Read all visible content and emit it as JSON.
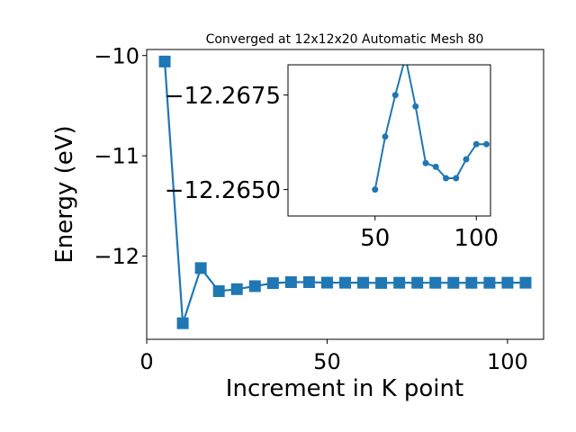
{
  "chart_data": [
    {
      "type": "line",
      "title": "Converged at 12x12x20 Automatic Mesh 80",
      "xlabel": "Increment in K point",
      "ylabel": "Energy (eV)",
      "xlim": [
        0,
        110
      ],
      "ylim": [
        -12.83,
        -9.94
      ],
      "xticks": [
        0,
        50,
        100
      ],
      "xtick_labels": [
        "0",
        "50",
        "100"
      ],
      "yticks": [
        -10,
        -11,
        -12
      ],
      "ytick_labels": [
        "−10",
        "−11",
        "−12"
      ],
      "grid": false,
      "marker": "square",
      "color": "#1f77b4",
      "series": [
        {
          "x": [
            5,
            10,
            15,
            20,
            25,
            30,
            35,
            40,
            45,
            50,
            55,
            60,
            65,
            70,
            75,
            80,
            85,
            90,
            95,
            100,
            105
          ],
          "y": [
            -10.06,
            -12.67,
            -12.12,
            -12.35,
            -12.33,
            -12.3,
            -12.27,
            -12.26,
            -12.26,
            -12.265,
            -12.266,
            -12.266,
            -12.268,
            -12.266,
            -12.2662,
            -12.2663,
            -12.2665,
            -12.2665,
            -12.2662,
            -12.2659,
            -12.2659
          ]
        }
      ]
    },
    {
      "type": "line",
      "title": "",
      "xlabel": "",
      "ylabel": "",
      "xlim": [
        7,
        107
      ],
      "ylim": [
        -12.2643,
        -12.2683
      ],
      "xticks": [
        50,
        100
      ],
      "xtick_labels": [
        "50",
        "100"
      ],
      "yticks": [
        -12.2675,
        -12.265
      ],
      "ytick_labels": [
        "−12.2675",
        "−12.2650"
      ],
      "grid": false,
      "marker": "circle",
      "color": "#1f77b4",
      "series": [
        {
          "x": [
            50,
            55,
            60,
            65,
            70,
            75,
            80,
            85,
            90,
            95,
            100,
            105
          ],
          "y": [
            -12.265,
            -12.2664,
            -12.2675,
            -12.2685,
            -12.2672,
            -12.2657,
            -12.2656,
            -12.2653,
            -12.2653,
            -12.2658,
            -12.2662,
            -12.2662
          ]
        }
      ]
    }
  ]
}
